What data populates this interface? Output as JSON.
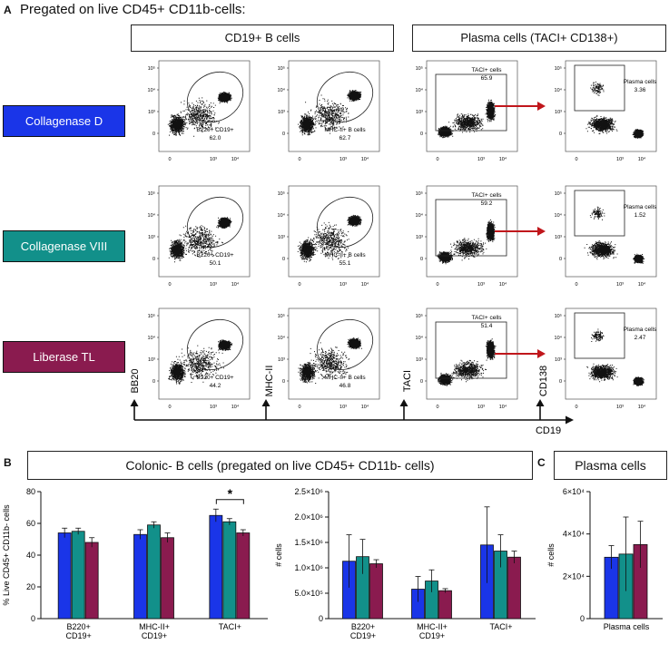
{
  "panelA": {
    "letter": "A",
    "title": "Pregated on live CD45+ CD11b-cells:",
    "header_b": "CD19+ B cells",
    "header_plasma": "Plasma cells (TACI+ CD138+)",
    "rows": [
      {
        "label": "Collagenase D",
        "color": "#1a35e8",
        "b220": "62.0",
        "mhc": "62.7",
        "taci": "65.9",
        "plasma": "3.36"
      },
      {
        "label": "Collagenase VIII",
        "color": "#12908a",
        "b220": "50.1",
        "mhc": "55.1",
        "taci": "59.2",
        "plasma": "1.52"
      },
      {
        "label": "Liberase TL",
        "color": "#8a1b4f",
        "b220": "44.2",
        "mhc": "46.8",
        "taci": "51.4",
        "plasma": "2.47"
      }
    ],
    "gate_labels": {
      "b220": "B220+ CD19+",
      "mhc": "MHC-II+ B cells",
      "taci": "TACI+ cells",
      "plasma": "Plasma cells"
    },
    "axis_labels": {
      "bb20": "BB20",
      "mhc": "MHC-II",
      "taci": "TACI",
      "cd138": "CD138",
      "cd19": "CD19"
    },
    "ticks_y": [
      "10⁵",
      "10⁴",
      "10³",
      "0"
    ],
    "ticks_x": [
      "0",
      "10³",
      "10⁴"
    ]
  },
  "panelB": {
    "letter": "B",
    "header": "Colonic- B cells (pregated on live CD45+ CD11b- cells)",
    "colors": [
      "#1a35e8",
      "#12908a",
      "#8a1b4f"
    ],
    "significance": "*"
  },
  "panelC": {
    "letter": "C",
    "header": "Plasma cells"
  },
  "chart_data": [
    {
      "type": "bar",
      "ylabel": "% Live CD45+ CD11b- cells",
      "xlabel": "",
      "ylim": [
        0,
        80
      ],
      "yticks": [
        "0",
        "20",
        "40",
        "60",
        "80"
      ],
      "categories": [
        "B220+\nCD19+",
        "MHC-II+\nCD19+",
        "TACI+"
      ],
      "series": [
        {
          "name": "Collagenase D",
          "values": [
            54,
            53,
            65
          ],
          "errors": [
            3,
            3,
            4
          ]
        },
        {
          "name": "Collagenase VIII",
          "values": [
            55,
            59,
            61
          ],
          "errors": [
            2,
            2,
            2
          ]
        },
        {
          "name": "Liberase TL",
          "values": [
            48,
            51,
            54
          ],
          "errors": [
            3,
            3,
            2
          ]
        }
      ]
    },
    {
      "type": "bar",
      "ylabel": "# cells",
      "xlabel": "",
      "ylim": [
        0,
        2500000
      ],
      "yticks": [
        "0",
        "5.0×10⁵",
        "1.0×10⁶",
        "1.5×10⁶",
        "2.0×10⁶",
        "2.5×10⁶"
      ],
      "categories": [
        "B220+\nCD19+",
        "MHC-II+\nCD19+",
        "TACI+"
      ],
      "series": [
        {
          "name": "Collagenase D",
          "values": [
            1130000,
            580000,
            1450000
          ],
          "errors": [
            520000,
            250000,
            750000
          ]
        },
        {
          "name": "Collagenase VIII",
          "values": [
            1220000,
            740000,
            1330000
          ],
          "errors": [
            340000,
            220000,
            320000
          ]
        },
        {
          "name": "Liberase TL",
          "values": [
            1080000,
            550000,
            1210000
          ],
          "errors": [
            80000,
            40000,
            120000
          ]
        }
      ]
    },
    {
      "type": "bar",
      "ylabel": "# cells",
      "xlabel": "",
      "ylim": [
        0,
        60000
      ],
      "yticks": [
        "0",
        "2×10⁴",
        "4×10⁴",
        "6×10⁴"
      ],
      "categories": [
        "Plasma cells"
      ],
      "series": [
        {
          "name": "Collagenase D",
          "values": [
            29000
          ],
          "errors": [
            5500
          ]
        },
        {
          "name": "Collagenase VIII",
          "values": [
            30500
          ],
          "errors": [
            17500
          ]
        },
        {
          "name": "Liberase TL",
          "values": [
            35000
          ],
          "errors": [
            11000
          ]
        }
      ]
    }
  ]
}
